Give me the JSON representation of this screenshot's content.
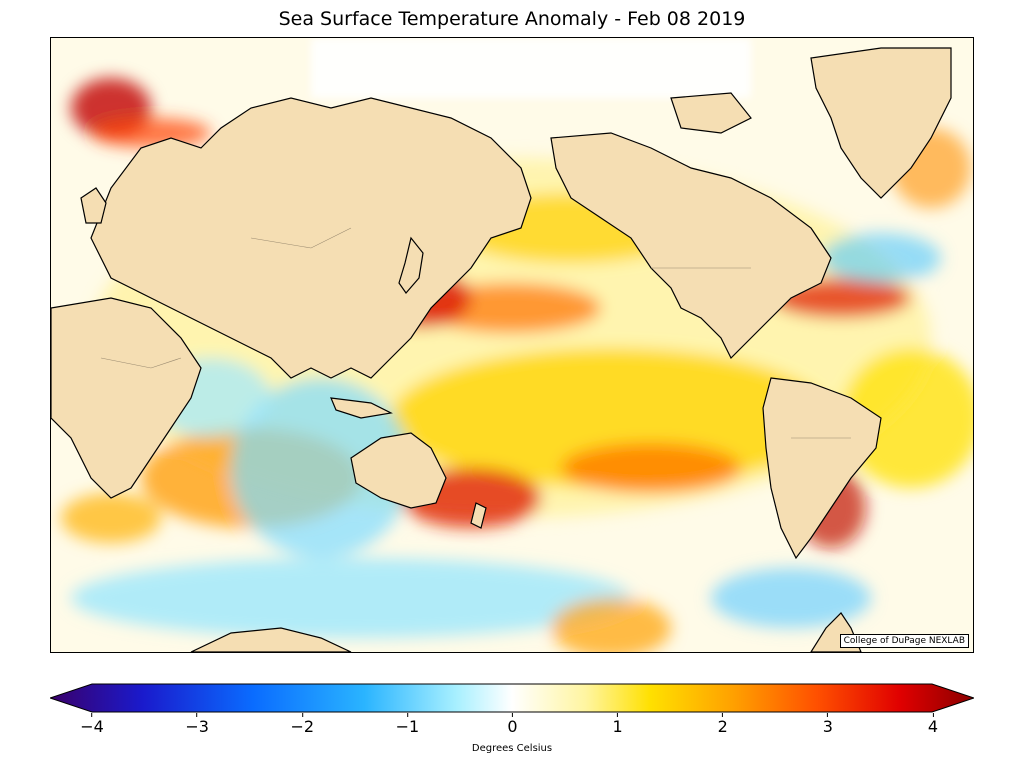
{
  "title": "Sea Surface Temperature Anomaly - Feb 08 2019",
  "credit": "College of DuPage NEXLAB",
  "colorbar": {
    "label": "Degrees Celsius",
    "min": -4,
    "max": 4,
    "ticks": [
      {
        "value": -4,
        "label": "−4"
      },
      {
        "value": -3,
        "label": "−3"
      },
      {
        "value": -2,
        "label": "−2"
      },
      {
        "value": -1,
        "label": "−1"
      },
      {
        "value": 0,
        "label": "0"
      },
      {
        "value": 1,
        "label": "1"
      },
      {
        "value": 2,
        "label": "2"
      },
      {
        "value": 3,
        "label": "3"
      },
      {
        "value": 4,
        "label": "4"
      }
    ],
    "colors": [
      "#3a006a",
      "#1a1acc",
      "#0a6cff",
      "#2ab4ff",
      "#a8f0ff",
      "#ffffff",
      "#fff5a0",
      "#ffe000",
      "#ffa000",
      "#ff5000",
      "#e00000",
      "#8a0000"
    ]
  },
  "map": {
    "land_color": "#f5deb3",
    "ocean_base": "#fffbe8",
    "ice_color": "#ffffff"
  }
}
